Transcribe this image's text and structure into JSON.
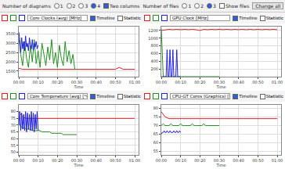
{
  "toolbar": {
    "diagrams_label": "Number of diagrams",
    "diagram_options": [
      "1",
      "2",
      "3",
      "4"
    ],
    "two_columns": "Two columns",
    "files_label": "Number of files",
    "file_options": [
      "1",
      "2",
      "3"
    ],
    "show_files": "Show files",
    "change_all": "Change all"
  },
  "chart_data": [
    {
      "type": "line",
      "title": "Core Clocks (avg) [MHz]",
      "views": [
        "Timeline",
        "Statistic"
      ],
      "x_label": "Time",
      "grid": true,
      "xlim": [
        0,
        62
      ],
      "xticks": [
        {
          "value": 0,
          "label": "00:00"
        },
        {
          "value": 10,
          "label": "00:10"
        },
        {
          "value": 20,
          "label": "00:20"
        },
        {
          "value": 30,
          "label": "00:30"
        },
        {
          "value": 40,
          "label": "00:40"
        },
        {
          "value": 50,
          "label": "00:50"
        },
        {
          "value": 60,
          "label": "01:00"
        }
      ],
      "ylim": [
        1200,
        3900
      ],
      "yticks": [
        1500,
        2000,
        2500,
        3000,
        3500
      ],
      "series": [
        {
          "color": "#e02020",
          "x": [
            0,
            2,
            4,
            6,
            8,
            10,
            12,
            14,
            16,
            18,
            20,
            22,
            24,
            26,
            28,
            30,
            32,
            34,
            36,
            38,
            40,
            42,
            44,
            46,
            48,
            50,
            52,
            54,
            56,
            58,
            60
          ],
          "values": [
            1650,
            1600,
            1600,
            1610,
            1600,
            1600,
            1600,
            1600,
            1600,
            1600,
            1600,
            1600,
            1600,
            1600,
            1600,
            1600,
            1600,
            1600,
            1600,
            1600,
            1600,
            1600,
            1600,
            1600,
            1600,
            1600,
            1700,
            1600,
            1600,
            1600,
            1600
          ]
        },
        {
          "color": "#209020",
          "x": [
            0,
            1,
            2,
            3,
            4,
            5,
            6,
            7,
            8,
            9,
            10,
            11,
            12,
            13,
            14,
            15,
            16,
            17,
            18,
            19,
            20,
            21,
            22,
            23,
            24,
            25,
            26,
            27,
            28,
            29,
            30
          ],
          "values": [
            3300,
            2400,
            1800,
            3100,
            2200,
            1700,
            2900,
            2000,
            3200,
            1900,
            2600,
            1700,
            3000,
            2300,
            1800,
            2800,
            2100,
            3200,
            1900,
            2500,
            1700,
            2900,
            2200,
            1800,
            3100,
            2000,
            2600,
            1900,
            2400,
            1600,
            1600
          ]
        },
        {
          "color": "#2020e0",
          "x": [
            0,
            0.5,
            1,
            1.5,
            2,
            2.5,
            3,
            3.5,
            4,
            4.5,
            5,
            5.5,
            6,
            6.5,
            7,
            7.5,
            8,
            8.5,
            9,
            9.5,
            10
          ],
          "values": [
            3600,
            3200,
            2500,
            3300,
            2700,
            3100,
            2600,
            3400,
            2800,
            3000,
            2600,
            3300,
            2900,
            2700,
            3200,
            2600,
            3000,
            2800,
            3100,
            2700,
            2900
          ]
        }
      ]
    },
    {
      "type": "line",
      "title": "GPU Clock [MHz]",
      "views": [
        "Timeline",
        "Statistic"
      ],
      "x_label": "Time",
      "grid": true,
      "xlim": [
        0,
        62
      ],
      "xticks": [
        {
          "value": 0,
          "label": "00:00"
        },
        {
          "value": 10,
          "label": "00:10"
        },
        {
          "value": 20,
          "label": "00:20"
        },
        {
          "value": 30,
          "label": "00:30"
        },
        {
          "value": 40,
          "label": "00:40"
        },
        {
          "value": 50,
          "label": "00:50"
        },
        {
          "value": 60,
          "label": "01:00"
        }
      ],
      "ylim": [
        0,
        1300
      ],
      "yticks": [
        200,
        400,
        600,
        800,
        1000,
        1200
      ],
      "series": [
        {
          "color": "#e02020",
          "x": [
            0,
            2,
            4,
            6,
            8,
            10,
            12,
            14,
            16,
            18,
            20,
            22,
            24,
            26,
            28,
            30,
            32,
            34,
            36,
            38,
            40,
            42,
            44,
            46,
            48,
            50,
            52,
            54,
            56,
            58,
            60
          ],
          "values": [
            1200,
            1220,
            1230,
            1220,
            1230,
            1220,
            1230,
            1220,
            1230,
            1220,
            1200,
            1230,
            1220,
            1230,
            1220,
            1230,
            1220,
            1230,
            1220,
            1230,
            1220,
            1230,
            1220,
            1230,
            1220,
            1230,
            1220,
            1230,
            1220,
            1230,
            1220
          ]
        },
        {
          "color": "#209020",
          "x": [
            0,
            1,
            2,
            3,
            4,
            5,
            6,
            7,
            8,
            9,
            10,
            11,
            12,
            13,
            14,
            15,
            16,
            17,
            18,
            19,
            20,
            21,
            22,
            23,
            24,
            25,
            26,
            27,
            28,
            29,
            30
          ],
          "values": [
            1250,
            0,
            0,
            0,
            0,
            0,
            0,
            0,
            0,
            0,
            0,
            0,
            0,
            0,
            0,
            0,
            0,
            0,
            0,
            0,
            0,
            0,
            0,
            0,
            0,
            0,
            0,
            0,
            0,
            0,
            0
          ]
        },
        {
          "color": "#2020e0",
          "x": [
            0,
            0.5,
            1,
            1.5,
            2,
            2.5,
            3,
            3.5,
            4,
            4.5,
            5,
            5.5,
            6,
            6.5,
            7,
            7.5,
            8,
            8.5,
            9,
            9.5,
            10
          ],
          "values": [
            0,
            0,
            0,
            0,
            0,
            0,
            700,
            0,
            0,
            700,
            0,
            0,
            700,
            0,
            0,
            0,
            700,
            0,
            0,
            0,
            0
          ]
        }
      ]
    },
    {
      "type": "line",
      "title": "Core Temperature (avg) [°C]",
      "views": [
        "Timeline",
        "Statistic"
      ],
      "x_label": "Time",
      "grid": true,
      "xlim": [
        0,
        62
      ],
      "xticks": [
        {
          "value": 0,
          "label": "00:00"
        },
        {
          "value": 10,
          "label": "00:10"
        },
        {
          "value": 20,
          "label": "00:20"
        },
        {
          "value": 30,
          "label": "00:30"
        },
        {
          "value": 40,
          "label": "00:40"
        },
        {
          "value": 50,
          "label": "00:50"
        },
        {
          "value": 60,
          "label": "01:00"
        }
      ],
      "ylim": [
        48,
        85
      ],
      "yticks": [
        50,
        55,
        60,
        65,
        70,
        75,
        80
      ],
      "series": [
        {
          "color": "#e02020",
          "x": [
            0,
            2,
            4,
            6,
            8,
            10,
            12,
            14,
            16,
            18,
            20,
            22,
            24,
            26,
            28,
            30,
            32,
            34,
            36,
            38,
            40,
            42,
            44,
            46,
            48,
            50,
            52,
            54,
            56,
            58,
            60
          ],
          "values": [
            80,
            76,
            75,
            75,
            75,
            75,
            75,
            75,
            75,
            75,
            75,
            75,
            75,
            75,
            75,
            75,
            75,
            75,
            75,
            75,
            75,
            75,
            75,
            75,
            75,
            75,
            75,
            75,
            75,
            75,
            75
          ]
        },
        {
          "color": "#209020",
          "x": [
            0,
            1,
            2,
            3,
            4,
            5,
            6,
            7,
            8,
            9,
            10,
            11,
            12,
            13,
            14,
            15,
            16,
            17,
            18,
            19,
            20,
            21,
            22,
            23,
            24,
            25,
            26,
            27,
            28,
            29,
            30
          ],
          "values": [
            72,
            69,
            68,
            68,
            67,
            67,
            67,
            66,
            66,
            66,
            66,
            66,
            65,
            65,
            65,
            65,
            65,
            64,
            64,
            64,
            64,
            64,
            64,
            63,
            63,
            63,
            63,
            63,
            63,
            63,
            63
          ]
        },
        {
          "color": "#2020e0",
          "x": [
            0,
            0.5,
            1,
            1.5,
            2,
            2.5,
            3,
            3.5,
            4,
            4.5,
            5,
            5.5,
            6,
            6.5,
            7,
            7.5,
            8,
            8.5,
            9,
            9.5,
            10
          ],
          "values": [
            70,
            80,
            66,
            79,
            67,
            78,
            66,
            80,
            65,
            79,
            67,
            78,
            66,
            80,
            66,
            79,
            65,
            78,
            67,
            80,
            66
          ]
        }
      ]
    },
    {
      "type": "line",
      "title": "CPU-GT Cores (Graphics) [°C]",
      "views": [
        "Timeline",
        "Statistic"
      ],
      "x_label": "Time",
      "grid": true,
      "xlim": [
        0,
        62
      ],
      "xticks": [
        {
          "value": 0,
          "label": "00:00"
        },
        {
          "value": 10,
          "label": "00:10"
        },
        {
          "value": 20,
          "label": "00:20"
        },
        {
          "value": 30,
          "label": "00:30"
        },
        {
          "value": 40,
          "label": "00:40"
        },
        {
          "value": 50,
          "label": "00:50"
        },
        {
          "value": 60,
          "label": "01:00"
        }
      ],
      "ylim": [
        53,
        82
      ],
      "yticks": [
        55,
        60,
        65,
        70,
        75,
        80
      ],
      "series": [
        {
          "color": "#e02020",
          "x": [
            0,
            2,
            4,
            6,
            8,
            10,
            12,
            14,
            16,
            18,
            20,
            22,
            24,
            26,
            28,
            30,
            32,
            34,
            36,
            38,
            40,
            42,
            44,
            46,
            48,
            50,
            52,
            54,
            56,
            58,
            60
          ],
          "values": [
            78,
            75,
            74,
            74,
            74,
            74,
            74,
            74,
            74,
            74,
            74,
            74,
            74,
            74,
            74,
            74,
            74,
            74,
            74,
            74,
            74,
            74,
            74,
            74,
            74,
            74,
            74,
            74,
            74,
            74,
            74
          ]
        },
        {
          "color": "#209020",
          "x": [
            0,
            1,
            2,
            3,
            4,
            5,
            6,
            7,
            8,
            9,
            10,
            11,
            12,
            13,
            14,
            15,
            16,
            17,
            18,
            19,
            20,
            21,
            22,
            23,
            24,
            25,
            26,
            27,
            28,
            29,
            30
          ],
          "values": [
            70,
            71,
            70,
            70,
            70,
            71,
            70,
            70,
            70,
            70,
            71,
            70,
            70,
            70,
            70,
            70,
            71,
            70,
            70,
            70,
            70,
            70,
            71,
            70,
            70,
            70,
            70,
            70,
            70,
            70,
            70
          ]
        },
        {
          "color": "#2020e0",
          "x": [
            0,
            0.5,
            1,
            1.5,
            2,
            2.5,
            3,
            3.5,
            4,
            4.5,
            5,
            5.5,
            6,
            6.5,
            7,
            7.5,
            8,
            8.5,
            9,
            9.5,
            10
          ],
          "values": [
            65,
            66,
            66,
            67,
            66,
            66,
            67,
            66,
            66,
            67,
            66,
            66,
            66,
            67,
            66,
            66,
            67,
            66,
            66,
            67,
            66
          ]
        }
      ]
    }
  ]
}
